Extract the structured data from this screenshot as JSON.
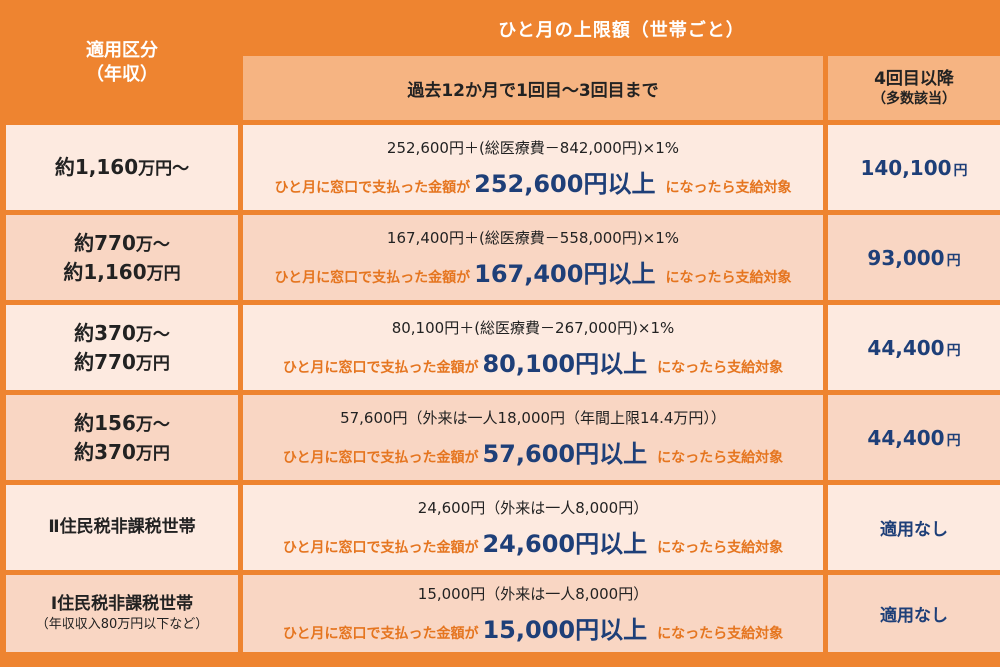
{
  "header": {
    "category_line1": "適用区分",
    "category_line2": "（年収）",
    "limit_title": "ひと月の上限額（世帯ごと）",
    "col_first3": "過去12か月で1回目〜3回目まで",
    "col_4th_line1": "4回目以降",
    "col_4th_line2": "（多数該当）"
  },
  "condition": {
    "prefix": "ひと月に窓口で支払った金額が",
    "suffix": "になったら支給対象"
  },
  "rows": [
    {
      "label_a": "約1,160",
      "label_b": "万円〜",
      "formula": "252,600円＋(総医療費－842,000円)×1%",
      "threshold": "252,600円以上",
      "after4_num": "140,100",
      "after4_yen": "円"
    },
    {
      "label_a": "約770",
      "label_b": "万〜",
      "label_c": "約1,160",
      "label_d": "万円",
      "formula": "167,400円＋(総医療費－558,000円)×1%",
      "threshold": "167,400円以上",
      "after4_num": "93,000",
      "after4_yen": "円"
    },
    {
      "label_a": "約370",
      "label_b": "万〜",
      "label_c": "約770",
      "label_d": "万円",
      "formula": "80,100円＋(総医療費－267,000円)×1%",
      "threshold": "80,100円以上",
      "after4_num": "44,400",
      "after4_yen": "円"
    },
    {
      "label_a": "約156",
      "label_b": "万〜",
      "label_c": "約370",
      "label_d": "万円",
      "formula": "57,600円（外来は一人18,000円（年間上限14.4万円））",
      "threshold": "57,600円以上",
      "after4_num": "44,400",
      "after4_yen": "円"
    },
    {
      "label_a": "Ⅱ住民税非課税世帯",
      "formula": "24,600円（外来は一人8,000円）",
      "threshold": "24,600円以上",
      "after4_text": "適用なし"
    },
    {
      "label_a": "Ⅰ住民税非課税世帯",
      "label_note": "（年収収入80万円以下など）",
      "formula": "15,000円（外来は一人8,000円）",
      "threshold": "15,000円以上",
      "after4_text": "適用なし"
    }
  ]
}
